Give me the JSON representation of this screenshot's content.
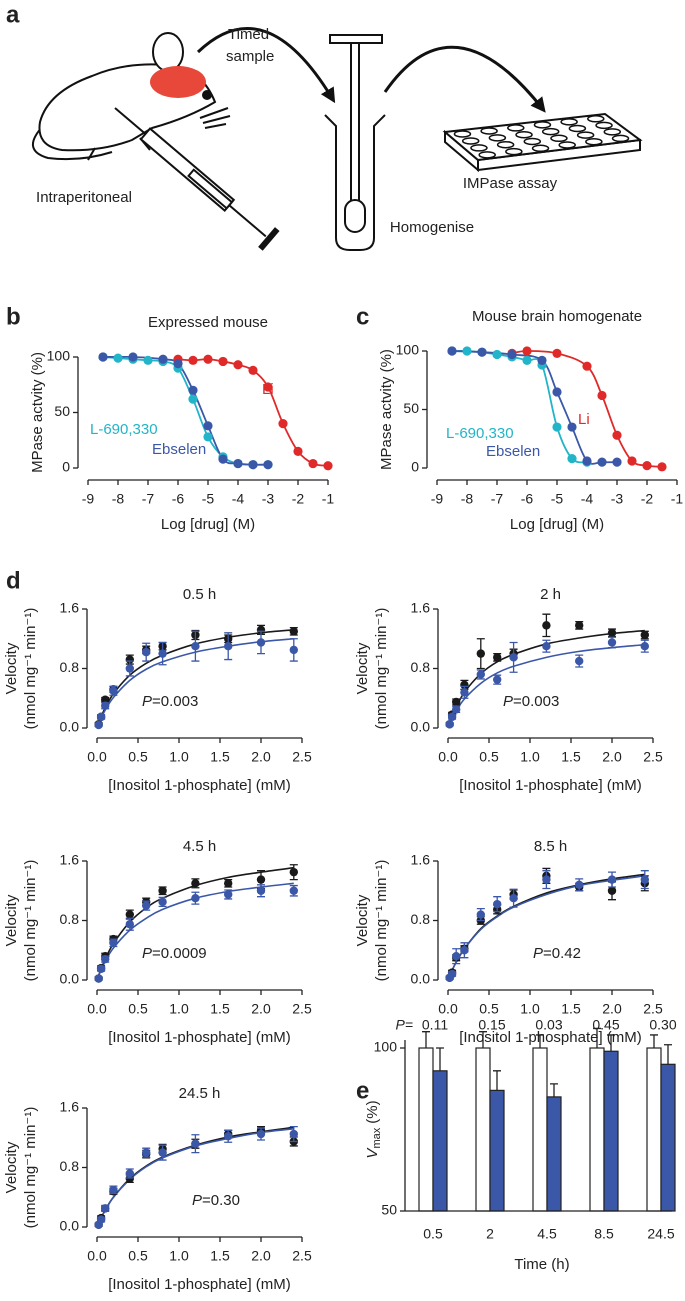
{
  "panel_labels": [
    "a",
    "b",
    "c",
    "d",
    "e"
  ],
  "diagram": {
    "timed_sample": [
      "Timed",
      "sample"
    ],
    "injection": "Intraperitoneal",
    "homogenise": "Homogenise",
    "assay": "IMPase assay"
  },
  "chart_data": [
    {
      "type": "scatter",
      "title": "Expressed mouse",
      "xlabel": "Log [drug] (M)",
      "ylabel": "MPase actvity (%)",
      "xlim": [
        -9,
        -1
      ],
      "ylim": [
        0,
        100
      ],
      "xticks": [
        -9,
        -8,
        -7,
        -6,
        -5,
        -4,
        -3,
        -2,
        -1
      ],
      "yticks": [
        0,
        50,
        100
      ],
      "series": [
        {
          "name": "Li",
          "color": "#e02a2a",
          "x": [
            -6,
            -5.5,
            -5,
            -4.5,
            -4,
            -3.5,
            -3,
            -2.5,
            -2,
            -1.5,
            -1
          ],
          "values": [
            98,
            97,
            98,
            96,
            93,
            88,
            73,
            40,
            15,
            4,
            2
          ]
        },
        {
          "name": "L-690,330",
          "color": "#22b4c8",
          "x": [
            -8.5,
            -8,
            -7.5,
            -7,
            -6.5,
            -6,
            -5.5,
            -5,
            -4.5,
            -4,
            -3.5,
            -3
          ],
          "values": [
            100,
            99,
            98,
            97,
            96,
            90,
            62,
            28,
            10,
            4,
            3,
            3
          ]
        },
        {
          "name": "Ebselen",
          "color": "#3b57a8",
          "x": [
            -8.5,
            -7.5,
            -6.5,
            -6,
            -5.5,
            -5,
            -4.5,
            -4,
            -3.5,
            -3
          ],
          "values": [
            100,
            100,
            98,
            94,
            70,
            38,
            8,
            4,
            3,
            3
          ]
        }
      ]
    },
    {
      "type": "scatter",
      "title": "Mouse brain homogenate",
      "xlabel": "Log [drug] (M)",
      "ylabel": "MPase actvity (%)",
      "xlim": [
        -9,
        -1
      ],
      "ylim": [
        0,
        100
      ],
      "xticks": [
        -9,
        -8,
        -7,
        -6,
        -5,
        -4,
        -3,
        -2,
        -1
      ],
      "yticks": [
        0,
        50,
        100
      ],
      "series": [
        {
          "name": "Li",
          "color": "#e02a2a",
          "x": [
            -6.5,
            -6,
            -5,
            -4,
            -3.5,
            -3,
            -2.5,
            -2,
            -1.5
          ],
          "values": [
            98,
            100,
            98,
            87,
            62,
            28,
            6,
            2,
            1
          ]
        },
        {
          "name": "L-690,330",
          "color": "#22b4c8",
          "x": [
            -8.5,
            -8,
            -7.5,
            -7,
            -6.5,
            -6,
            -5.5,
            -5,
            -4.5,
            -4
          ],
          "values": [
            100,
            100,
            99,
            97,
            95,
            92,
            88,
            35,
            8,
            5
          ]
        },
        {
          "name": "Ebselen",
          "color": "#3b57a8",
          "x": [
            -8.5,
            -7.5,
            -6.5,
            -5.5,
            -5,
            -4.5,
            -4,
            -3.5,
            -3
          ],
          "values": [
            100,
            99,
            97,
            92,
            65,
            35,
            6,
            5,
            5
          ]
        }
      ]
    },
    {
      "type": "scatter",
      "title": "0.5 h",
      "xlabel": "[Inositol 1-phosphate] (mM)",
      "ylabel": "Velocity",
      "ylabel_unit": "(nmol mg⁻¹ min⁻¹)",
      "annotation_prefix": "P",
      "annotation": "=0.003",
      "xlim": [
        0,
        2.5
      ],
      "ylim": [
        0,
        1.6
      ],
      "xticks": [
        {
          "value": 0,
          "label": "0.0"
        },
        0.5,
        {
          "value": 1,
          "label": "1.0"
        },
        1.5,
        {
          "value": 2,
          "label": "2.0"
        },
        2.5
      ],
      "yticks": [
        {
          "value": 0,
          "label": "0.0"
        },
        0.8,
        1.6
      ],
      "x": [
        0.02,
        0.05,
        0.1,
        0.2,
        0.4,
        0.6,
        0.8,
        1.2,
        1.6,
        2.0,
        2.4
      ],
      "series": [
        {
          "color": "#1a1a1a",
          "values": [
            0.05,
            0.15,
            0.38,
            0.52,
            0.92,
            1.05,
            1.1,
            1.25,
            1.2,
            1.32,
            1.3
          ],
          "errors": [
            0.02,
            0.02,
            0.03,
            0.04,
            0.06,
            0.05,
            0.05,
            0.06,
            0.05,
            0.06,
            0.05
          ],
          "fit": [
            0.06,
            0.15,
            0.27,
            0.46,
            0.71,
            0.87,
            0.98,
            1.13,
            1.22,
            1.28,
            1.32
          ]
        },
        {
          "color": "#3b57a8",
          "values": [
            0.04,
            0.15,
            0.3,
            0.5,
            0.8,
            1.02,
            1.0,
            1.1,
            1.1,
            1.15,
            1.05
          ],
          "errors": [
            0.02,
            0.03,
            0.04,
            0.06,
            0.1,
            0.12,
            0.15,
            0.2,
            0.18,
            0.15,
            0.15
          ],
          "fit": [
            0.06,
            0.13,
            0.24,
            0.41,
            0.64,
            0.79,
            0.89,
            1.02,
            1.1,
            1.16,
            1.2
          ]
        }
      ]
    },
    {
      "type": "scatter",
      "title": "2 h",
      "xlabel": "[Inositol 1-phosphate] (mM)",
      "ylabel": "Velocity",
      "ylabel_unit": "(nmol mg⁻¹ min⁻¹)",
      "annotation_prefix": "P",
      "annotation": "=0.003",
      "xlim": [
        0,
        2.5
      ],
      "ylim": [
        0,
        1.6
      ],
      "xticks": [
        {
          "value": 0,
          "label": "0.0"
        },
        0.5,
        {
          "value": 1,
          "label": "1.0"
        },
        1.5,
        {
          "value": 2,
          "label": "2.0"
        },
        2.5
      ],
      "yticks": [
        {
          "value": 0,
          "label": "0.0"
        },
        0.8,
        1.6
      ],
      "x": [
        0.02,
        0.05,
        0.1,
        0.2,
        0.4,
        0.6,
        0.8,
        1.2,
        1.6,
        2.0,
        2.4
      ],
      "series": [
        {
          "color": "#1a1a1a",
          "values": [
            0.05,
            0.18,
            0.35,
            0.58,
            1.0,
            0.95,
            1.0,
            1.38,
            1.38,
            1.28,
            1.25
          ],
          "errors": [
            0.02,
            0.03,
            0.04,
            0.06,
            0.2,
            0.05,
            0.06,
            0.15,
            0.05,
            0.05,
            0.05
          ],
          "fit": [
            0.07,
            0.16,
            0.28,
            0.48,
            0.73,
            0.89,
            0.99,
            1.13,
            1.21,
            1.27,
            1.31
          ]
        },
        {
          "color": "#3b57a8",
          "values": [
            0.05,
            0.15,
            0.25,
            0.48,
            0.72,
            0.65,
            0.95,
            1.1,
            0.9,
            1.15,
            1.1
          ],
          "errors": [
            0.02,
            0.03,
            0.04,
            0.08,
            0.06,
            0.06,
            0.2,
            0.08,
            0.08,
            0.07,
            0.08
          ],
          "fit": [
            0.05,
            0.12,
            0.23,
            0.39,
            0.6,
            0.74,
            0.83,
            0.95,
            1.03,
            1.08,
            1.12
          ]
        }
      ]
    },
    {
      "type": "scatter",
      "title": "4.5 h",
      "xlabel": "[Inositol 1-phosphate] (mM)",
      "ylabel": "Velocity",
      "ylabel_unit": "(nmol mg⁻¹ min⁻¹)",
      "annotation_prefix": "P",
      "annotation": "=0.0009",
      "xlim": [
        0,
        2.5
      ],
      "ylim": [
        0,
        1.6
      ],
      "xticks": [
        {
          "value": 0,
          "label": "0.0"
        },
        0.5,
        {
          "value": 1,
          "label": "1.0"
        },
        1.5,
        {
          "value": 2,
          "label": "2.0"
        },
        2.5
      ],
      "yticks": [
        {
          "value": 0,
          "label": "0.0"
        },
        0.8,
        1.6
      ],
      "x": [
        0.02,
        0.05,
        0.1,
        0.2,
        0.4,
        0.6,
        0.8,
        1.2,
        1.6,
        2.0,
        2.4
      ],
      "series": [
        {
          "color": "#1a1a1a",
          "values": [
            0.02,
            0.16,
            0.32,
            0.55,
            0.88,
            1.05,
            1.2,
            1.3,
            1.3,
            1.35,
            1.45
          ],
          "errors": [
            0.02,
            0.03,
            0.04,
            0.04,
            0.06,
            0.05,
            0.05,
            0.06,
            0.05,
            0.12,
            0.1
          ],
          "fit": [
            0.06,
            0.15,
            0.28,
            0.49,
            0.78,
            0.97,
            1.1,
            1.27,
            1.38,
            1.45,
            1.51
          ]
        },
        {
          "color": "#3b57a8",
          "values": [
            0.02,
            0.15,
            0.28,
            0.5,
            0.75,
            1.0,
            1.05,
            1.1,
            1.15,
            1.2,
            1.2
          ],
          "errors": [
            0.02,
            0.03,
            0.04,
            0.05,
            0.08,
            0.06,
            0.06,
            0.08,
            0.06,
            0.08,
            0.07
          ],
          "fit": [
            0.06,
            0.13,
            0.25,
            0.43,
            0.67,
            0.83,
            0.95,
            1.1,
            1.19,
            1.25,
            1.3
          ]
        }
      ]
    },
    {
      "type": "scatter",
      "title": "8.5 h",
      "xlabel": "[Inositol 1-phosphate] (mM)",
      "ylabel": "Velocity",
      "ylabel_unit": "(nmol mg⁻¹ min⁻¹)",
      "annotation_prefix": "P",
      "annotation": "=0.42",
      "xlim": [
        0,
        2.5
      ],
      "ylim": [
        0,
        1.6
      ],
      "xticks": [
        {
          "value": 0,
          "label": "0.0"
        },
        0.5,
        {
          "value": 1,
          "label": "1.0"
        },
        1.5,
        {
          "value": 2,
          "label": "2.0"
        },
        2.5
      ],
      "yticks": [
        {
          "value": 0,
          "label": "0.0"
        },
        0.8,
        1.6
      ],
      "x": [
        0.02,
        0.05,
        0.1,
        0.2,
        0.4,
        0.6,
        0.8,
        1.2,
        1.6,
        2.0,
        2.4
      ],
      "series": [
        {
          "color": "#1a1a1a",
          "values": [
            0.03,
            0.1,
            0.3,
            0.42,
            0.8,
            0.95,
            1.15,
            1.4,
            1.25,
            1.2,
            1.3
          ],
          "errors": [
            0.02,
            0.03,
            0.04,
            0.04,
            0.05,
            0.06,
            0.06,
            0.1,
            0.05,
            0.12,
            0.1
          ],
          "fit": [
            0.05,
            0.13,
            0.24,
            0.42,
            0.69,
            0.86,
            0.99,
            1.17,
            1.28,
            1.36,
            1.42
          ]
        },
        {
          "color": "#3b57a8",
          "values": [
            0.03,
            0.08,
            0.32,
            0.4,
            0.88,
            1.02,
            1.1,
            1.35,
            1.28,
            1.35,
            1.35
          ],
          "errors": [
            0.02,
            0.03,
            0.1,
            0.1,
            0.08,
            0.1,
            0.12,
            0.12,
            0.08,
            0.1,
            0.12
          ],
          "fit": [
            0.05,
            0.13,
            0.24,
            0.42,
            0.68,
            0.85,
            0.98,
            1.15,
            1.27,
            1.34,
            1.4
          ]
        }
      ]
    },
    {
      "type": "scatter",
      "title": "24.5 h",
      "xlabel": "[Inositol 1-phosphate] (mM)",
      "ylabel": "Velocity",
      "ylabel_unit": "(nmol mg⁻¹ min⁻¹)",
      "annotation_prefix": "P",
      "annotation": "=0.30",
      "xlim": [
        0,
        2.5
      ],
      "ylim": [
        0,
        1.6
      ],
      "xticks": [
        {
          "value": 0,
          "label": "0.0"
        },
        0.5,
        {
          "value": 1,
          "label": "1.0"
        },
        1.5,
        {
          "value": 2,
          "label": "2.0"
        },
        2.5
      ],
      "yticks": [
        {
          "value": 0,
          "label": "0.0"
        },
        0.8,
        1.6
      ],
      "x": [
        0.02,
        0.05,
        0.1,
        0.2,
        0.4,
        0.6,
        0.8,
        1.2,
        1.6,
        2.0,
        2.4
      ],
      "series": [
        {
          "color": "#1a1a1a",
          "values": [
            0.03,
            0.12,
            0.25,
            0.48,
            0.65,
            0.98,
            1.05,
            1.12,
            1.25,
            1.3,
            1.15
          ],
          "errors": [
            0.02,
            0.03,
            0.03,
            0.04,
            0.05,
            0.05,
            0.06,
            0.06,
            0.05,
            0.05,
            0.06
          ],
          "fit": [
            0.05,
            0.12,
            0.23,
            0.4,
            0.65,
            0.82,
            0.94,
            1.1,
            1.21,
            1.28,
            1.34
          ]
        },
        {
          "color": "#3b57a8",
          "values": [
            0.03,
            0.1,
            0.25,
            0.5,
            0.72,
            1.0,
            1.0,
            1.12,
            1.22,
            1.25,
            1.25
          ],
          "errors": [
            0.02,
            0.03,
            0.04,
            0.05,
            0.06,
            0.06,
            0.1,
            0.12,
            0.08,
            0.08,
            0.1
          ],
          "fit": [
            0.05,
            0.12,
            0.22,
            0.4,
            0.64,
            0.81,
            0.93,
            1.09,
            1.19,
            1.27,
            1.32
          ]
        }
      ]
    },
    {
      "type": "bar",
      "xlabel": "Time (h)",
      "ylabel_parts": [
        "V",
        "max",
        "(%)"
      ],
      "annotation_prefix": "P=",
      "p_labels": [
        "0.11",
        "0.15",
        "0.03",
        "0.45",
        "0.30"
      ],
      "categories": [
        "0.5",
        "2",
        "4.5",
        "8.5",
        "24.5"
      ],
      "ylim": [
        50,
        100
      ],
      "yticks": [
        50,
        100
      ],
      "series": [
        {
          "color": "#ffffff",
          "values": [
            100,
            100,
            100,
            100,
            100
          ],
          "errors": [
            5,
            5,
            4,
            6,
            4
          ]
        },
        {
          "color": "#3b57a8",
          "values": [
            93,
            87,
            85,
            99,
            95
          ],
          "errors": [
            7,
            6,
            4,
            5,
            6
          ]
        }
      ]
    }
  ]
}
